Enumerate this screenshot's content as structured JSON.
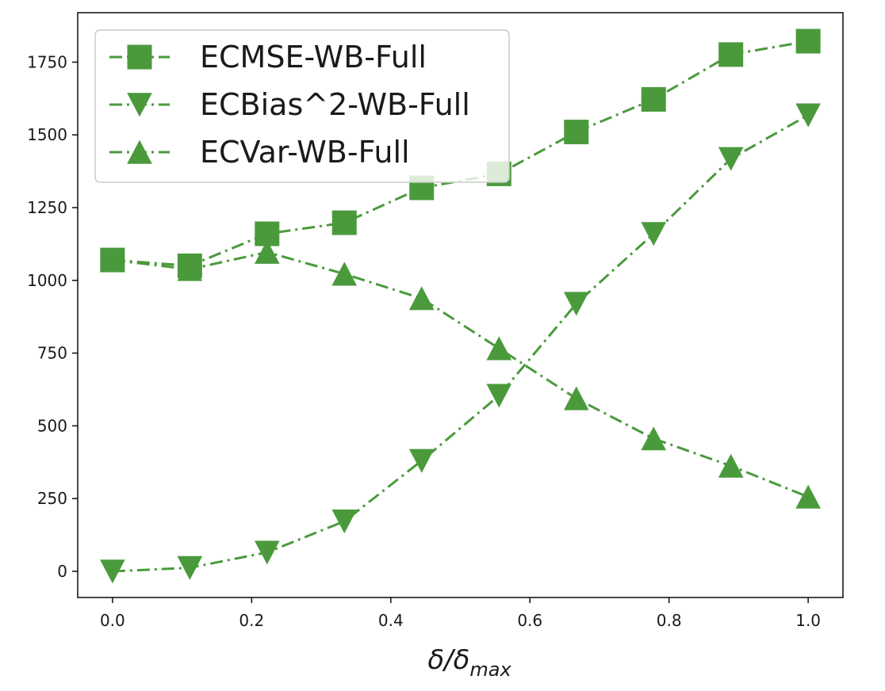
{
  "chart_data": {
    "type": "line",
    "title": "",
    "xlabel": "δ/δmax",
    "xlabel_parts": {
      "main": "δ/δ",
      "sub": "max"
    },
    "ylabel": "",
    "xlim": [
      -0.05,
      1.05
    ],
    "ylim": [
      -90,
      1920
    ],
    "xticks": [
      0.0,
      0.2,
      0.4,
      0.6,
      0.8,
      1.0
    ],
    "xtick_labels": [
      "0.0",
      "0.2",
      "0.4",
      "0.6",
      "0.8",
      "1.0"
    ],
    "yticks": [
      0,
      250,
      500,
      750,
      1000,
      1250,
      1500,
      1750
    ],
    "ytick_labels": [
      "0",
      "250",
      "500",
      "750",
      "1000",
      "1250",
      "1500",
      "1750"
    ],
    "grid": false,
    "legend_position": "upper-left",
    "color": "#4a9a3c",
    "x": [
      0.0,
      0.1111,
      0.2222,
      0.3333,
      0.4444,
      0.5556,
      0.6667,
      0.7778,
      0.8889,
      1.0
    ],
    "series": [
      {
        "name": "ECMSE-WB-Full",
        "marker": "square",
        "values": [
          1070,
          1050,
          1160,
          1198,
          1318,
          1366,
          1510,
          1622,
          1776,
          1822
        ]
      },
      {
        "name": "ECBias^2-WB-Full",
        "marker": "triangle-down",
        "values": [
          0,
          12,
          65,
          172,
          380,
          604,
          920,
          1160,
          1418,
          1568
        ]
      },
      {
        "name": "ECVar-WB-Full",
        "marker": "triangle-up",
        "values": [
          1070,
          1038,
          1097,
          1022,
          938,
          766,
          594,
          456,
          362,
          256
        ]
      }
    ]
  }
}
